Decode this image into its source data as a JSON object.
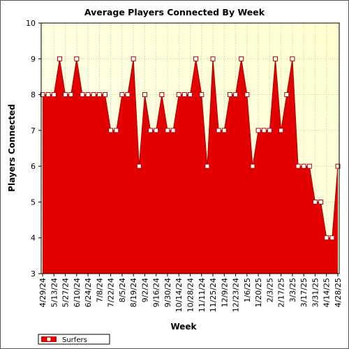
{
  "chart_data": {
    "type": "area",
    "title": "Average Players Connected By Week",
    "xlabel": "Week",
    "ylabel": "Players Connected",
    "ylim": [
      3,
      10
    ],
    "yticks": [
      3,
      4,
      5,
      6,
      7,
      8,
      9,
      10
    ],
    "grid": true,
    "legend_position": "bottom-left",
    "colors": {
      "fill": "#e30000",
      "line": "#b00000",
      "plot_bg_light": "#fffff2",
      "plot_bg_dark": "#ffffd0",
      "grid": "#c8c8a0"
    },
    "x_tick_labels": [
      "4/29/24",
      "5/13/24",
      "5/27/24",
      "6/10/24",
      "6/24/24",
      "7/8/24",
      "7/22/24",
      "8/5/24",
      "8/19/24",
      "9/2/24",
      "9/16/24",
      "9/30/24",
      "10/14/24",
      "10/28/24",
      "11/11/24",
      "11/25/24",
      "12/9/24",
      "12/23/24",
      "1/6/25",
      "1/20/25",
      "2/3/25",
      "2/17/25",
      "3/3/25",
      "3/17/25",
      "3/31/25",
      "4/14/25",
      "4/28/25"
    ],
    "x_tick_every": 2,
    "series": [
      {
        "name": "Surfers",
        "values": [
          8,
          8,
          8,
          9,
          8,
          8,
          9,
          8,
          8,
          8,
          8,
          8,
          7,
          7,
          8,
          8,
          9,
          6,
          8,
          7,
          7,
          8,
          7,
          7,
          8,
          8,
          8,
          9,
          8,
          6,
          9,
          7,
          7,
          8,
          8,
          9,
          8,
          6,
          7,
          7,
          7,
          9,
          7,
          8,
          9,
          6,
          6,
          6,
          5,
          5,
          4,
          4,
          6
        ]
      }
    ]
  }
}
